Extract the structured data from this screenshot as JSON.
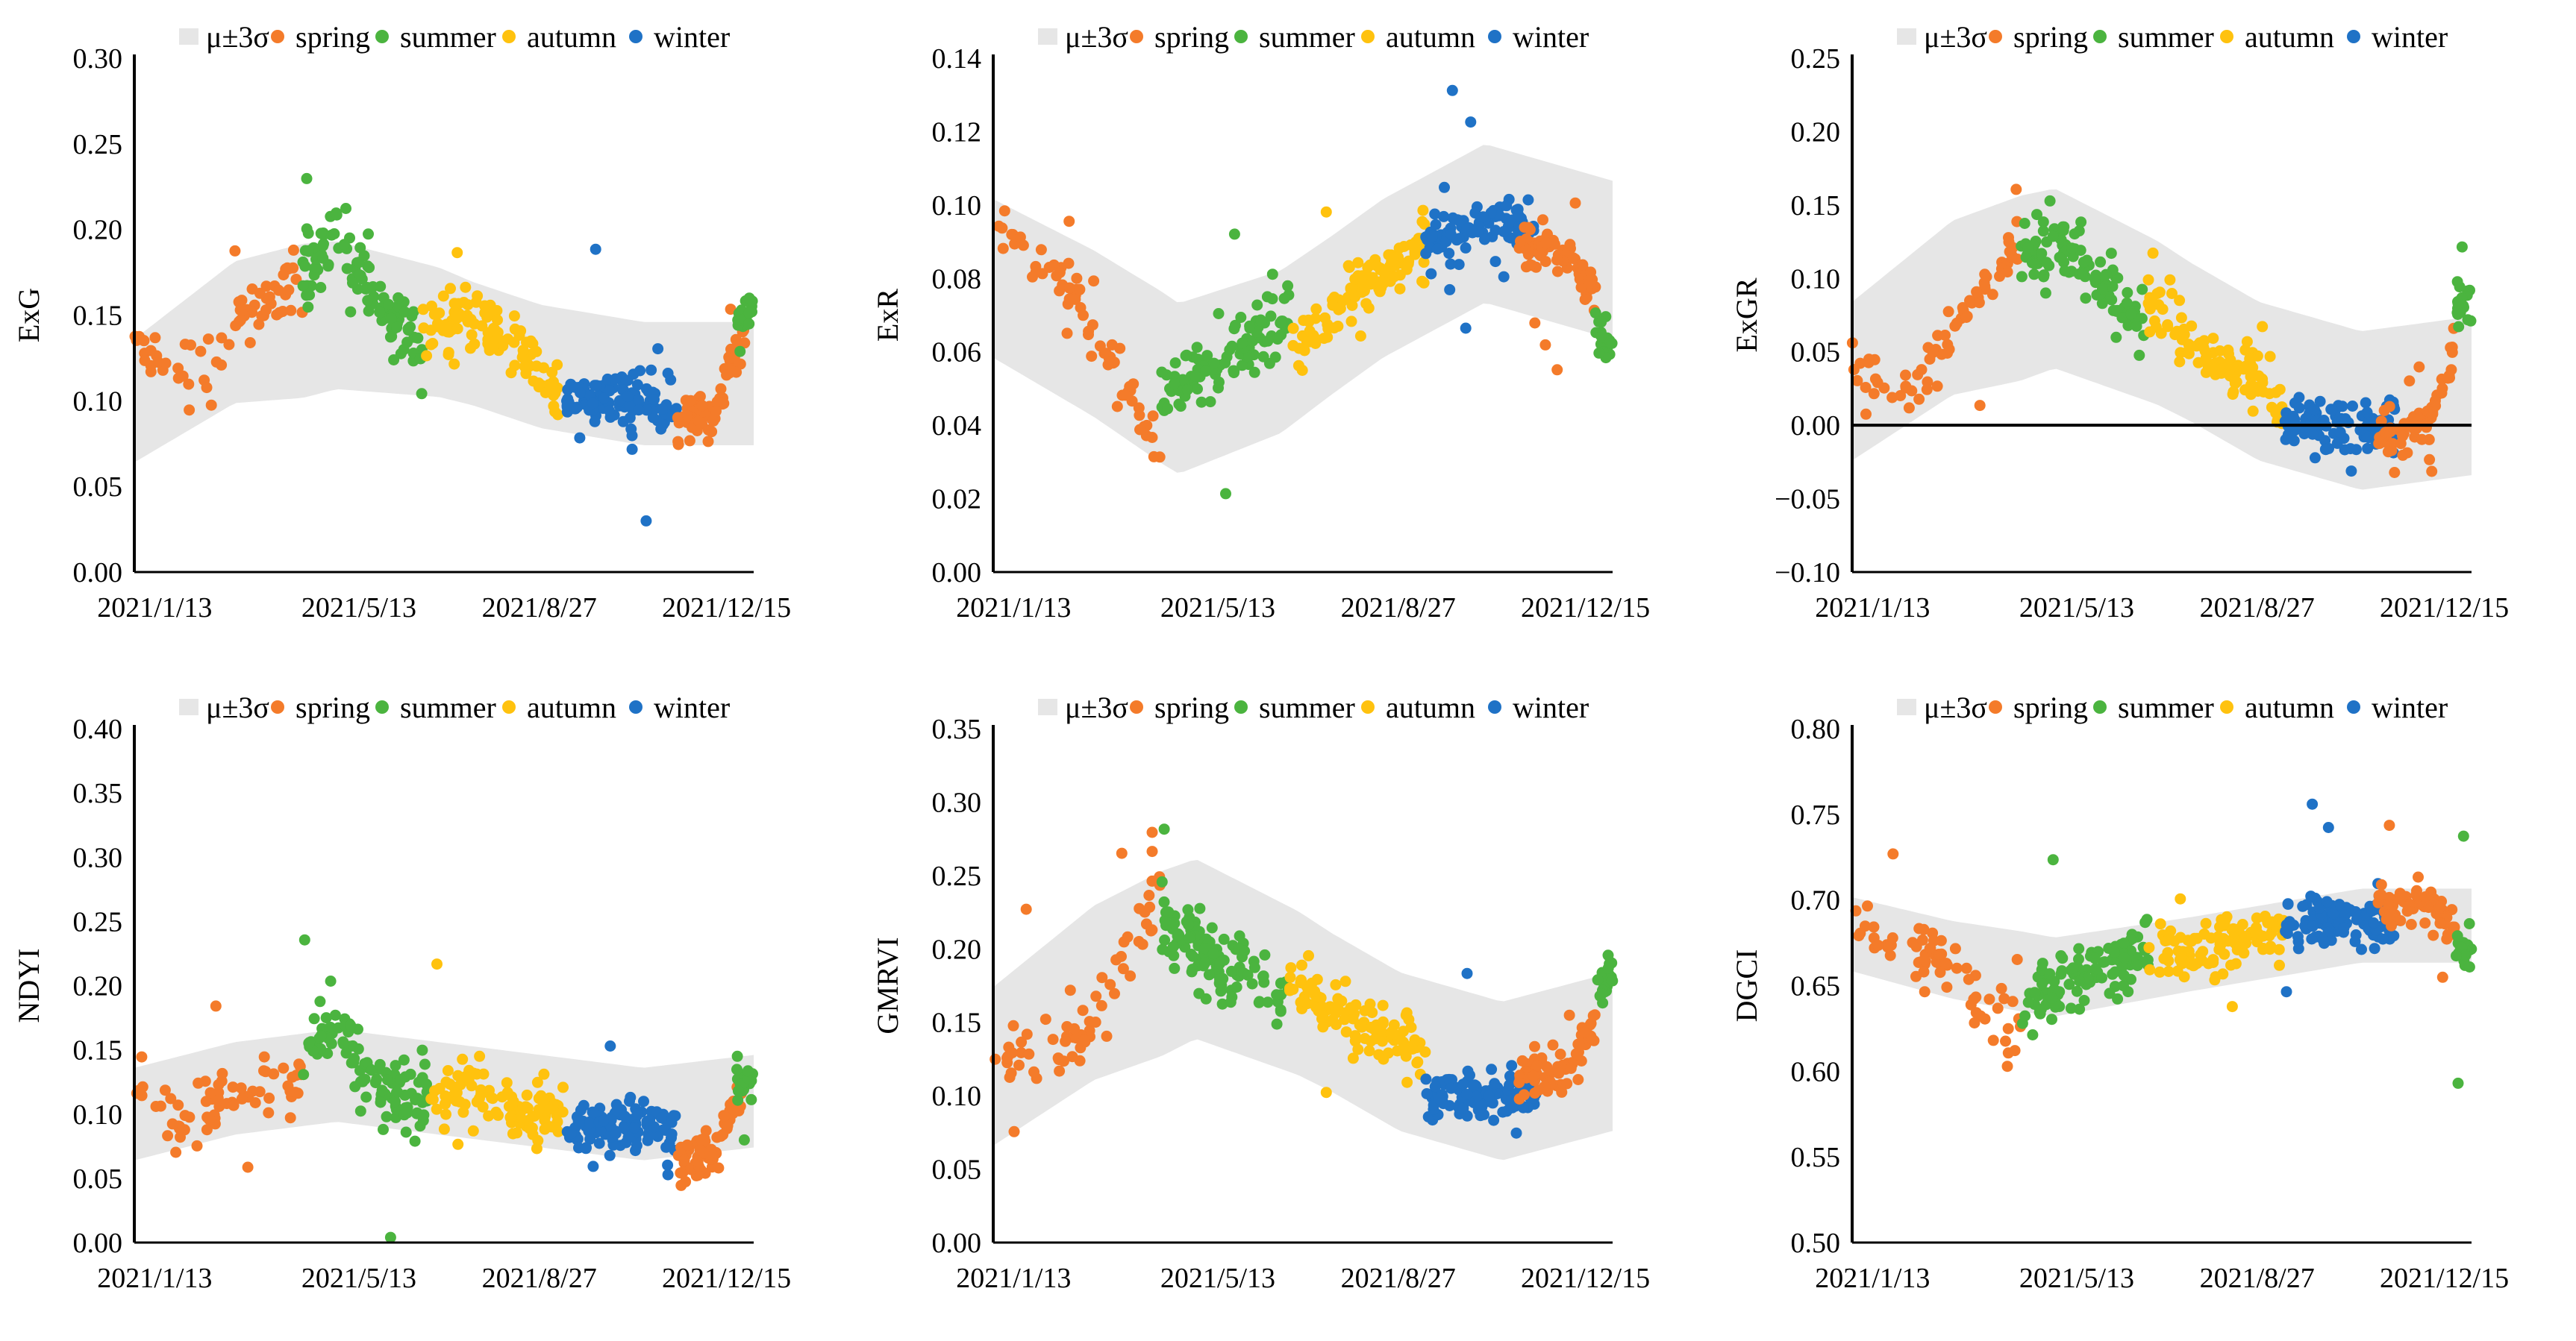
{
  "colors": {
    "spring": "#F47B2A",
    "summer": "#4BB43F",
    "autumn": "#FFC20E",
    "winter": "#1F72C6",
    "band": "#E6E6E6",
    "axis": "#000000"
  },
  "legend": {
    "band": "μ±3σ",
    "spring": "spring",
    "summer": "summer",
    "autumn": "autumn",
    "winter": "winter"
  },
  "chart_data": [
    {
      "type": "scatter",
      "id": "exg",
      "ylabel": "ExG",
      "ylim": [
        0.0,
        0.3
      ],
      "yticks": [
        0.0,
        0.05,
        0.1,
        0.15,
        0.2,
        0.25,
        0.3
      ],
      "ytick_labels": [
        "0.00",
        "0.05",
        "0.10",
        "0.15",
        "0.20",
        "0.25",
        "0.30"
      ],
      "xlim": [
        "2021-01-01",
        "2022-01-01"
      ],
      "xtick_labels": [
        "2021/1/13",
        "2021/5/13",
        "2021/8/27",
        "2021/12/15"
      ],
      "xtick_doy": [
        13,
        133,
        239,
        349
      ],
      "zero_line": false,
      "series_trend": {
        "spring_a": [
          [
            1,
            0.13
          ],
          [
            40,
            0.11
          ],
          [
            60,
            0.15
          ],
          [
            80,
            0.16
          ],
          [
            100,
            0.165
          ]
        ],
        "summer": [
          [
            100,
            0.17
          ],
          [
            120,
            0.2
          ],
          [
            140,
            0.16
          ],
          [
            170,
            0.13
          ]
        ],
        "autumn": [
          [
            170,
            0.14
          ],
          [
            200,
            0.15
          ],
          [
            230,
            0.13
          ],
          [
            250,
            0.1
          ]
        ],
        "winter": [
          [
            255,
            0.1
          ],
          [
            280,
            0.1
          ],
          [
            300,
            0.1
          ],
          [
            320,
            0.09
          ]
        ],
        "spring_b": [
          [
            320,
            0.09
          ],
          [
            340,
            0.09
          ],
          [
            355,
            0.13
          ],
          [
            360,
            0.14
          ]
        ],
        "summer_b": [
          [
            355,
            0.15
          ],
          [
            365,
            0.15
          ]
        ]
      },
      "band_mu": [
        [
          1,
          0.1
        ],
        [
          60,
          0.14
        ],
        [
          120,
          0.15
        ],
        [
          180,
          0.14
        ],
        [
          240,
          0.12
        ],
        [
          300,
          0.11
        ],
        [
          365,
          0.11
        ]
      ],
      "band_sigma": [
        [
          1,
          0.02
        ],
        [
          100,
          0.025
        ],
        [
          200,
          0.02
        ],
        [
          365,
          0.02
        ]
      ]
    },
    {
      "type": "scatter",
      "id": "exr",
      "ylabel": "ExR",
      "ylim": [
        0.0,
        0.14
      ],
      "yticks": [
        0.0,
        0.02,
        0.04,
        0.06,
        0.08,
        0.1,
        0.12,
        0.14
      ],
      "ytick_labels": [
        "0.00",
        "0.02",
        "0.04",
        "0.06",
        "0.08",
        "0.10",
        "0.12",
        "0.14"
      ],
      "xlim": [
        "2021-01-01",
        "2022-01-01"
      ],
      "xtick_labels": [
        "2021/1/13",
        "2021/5/13",
        "2021/8/27",
        "2021/12/15"
      ],
      "xtick_doy": [
        13,
        133,
        239,
        349
      ],
      "zero_line": false,
      "series_trend": {
        "spring_a": [
          [
            1,
            0.09
          ],
          [
            30,
            0.085
          ],
          [
            60,
            0.07
          ],
          [
            80,
            0.05
          ],
          [
            100,
            0.03
          ]
        ],
        "summer": [
          [
            100,
            0.05
          ],
          [
            130,
            0.055
          ],
          [
            160,
            0.065
          ],
          [
            175,
            0.07
          ]
        ],
        "autumn": [
          [
            175,
            0.06
          ],
          [
            210,
            0.075
          ],
          [
            240,
            0.085
          ],
          [
            255,
            0.09
          ]
        ],
        "winter": [
          [
            255,
            0.09
          ],
          [
            290,
            0.095
          ],
          [
            320,
            0.095
          ]
        ],
        "spring_b": [
          [
            310,
            0.09
          ],
          [
            340,
            0.085
          ],
          [
            355,
            0.075
          ]
        ],
        "summer_b": [
          [
            355,
            0.065
          ],
          [
            365,
            0.06
          ]
        ]
      },
      "band_mu": [
        [
          1,
          0.08
        ],
        [
          60,
          0.065
        ],
        [
          110,
          0.05
        ],
        [
          170,
          0.06
        ],
        [
          230,
          0.08
        ],
        [
          290,
          0.095
        ],
        [
          365,
          0.085
        ]
      ],
      "band_sigma": [
        [
          1,
          0.012
        ],
        [
          100,
          0.013
        ],
        [
          200,
          0.012
        ],
        [
          365,
          0.012
        ]
      ]
    },
    {
      "type": "scatter",
      "id": "exgr",
      "ylabel": "ExGR",
      "ylim": [
        -0.1,
        0.25
      ],
      "yticks": [
        -0.1,
        -0.05,
        0.0,
        0.05,
        0.1,
        0.15,
        0.2,
        0.25
      ],
      "ytick_labels": [
        "−0.10",
        "−0.05",
        "0.00",
        "0.05",
        "0.10",
        "0.15",
        "0.20",
        "0.25"
      ],
      "xlim": [
        "2021-01-01",
        "2022-01-01"
      ],
      "xtick_labels": [
        "2021/1/13",
        "2021/5/13",
        "2021/8/27",
        "2021/12/15"
      ],
      "xtick_doy": [
        13,
        133,
        239,
        349
      ],
      "zero_line": true,
      "series_trend": {
        "spring_a": [
          [
            1,
            0.04
          ],
          [
            30,
            0.02
          ],
          [
            60,
            0.06
          ],
          [
            80,
            0.1
          ],
          [
            100,
            0.13
          ]
        ],
        "summer": [
          [
            100,
            0.12
          ],
          [
            130,
            0.12
          ],
          [
            160,
            0.08
          ],
          [
            175,
            0.06
          ]
        ],
        "autumn": [
          [
            175,
            0.08
          ],
          [
            210,
            0.05
          ],
          [
            240,
            0.03
          ],
          [
            255,
            0.01
          ]
        ],
        "winter": [
          [
            255,
            0.0
          ],
          [
            290,
            0.0
          ],
          [
            320,
            0.0
          ]
        ],
        "spring_b": [
          [
            310,
            -0.01
          ],
          [
            340,
            0.0
          ],
          [
            355,
            0.05
          ]
        ],
        "summer_b": [
          [
            355,
            0.08
          ],
          [
            365,
            0.08
          ]
        ]
      },
      "band_mu": [
        [
          1,
          0.03
        ],
        [
          60,
          0.08
        ],
        [
          120,
          0.1
        ],
        [
          180,
          0.07
        ],
        [
          240,
          0.03
        ],
        [
          300,
          0.01
        ],
        [
          365,
          0.02
        ]
      ],
      "band_sigma": [
        [
          1,
          0.03
        ],
        [
          100,
          0.035
        ],
        [
          200,
          0.03
        ],
        [
          365,
          0.03
        ]
      ]
    },
    {
      "type": "scatter",
      "id": "ndyi",
      "ylabel": "NDYI",
      "ylim": [
        0.0,
        0.4
      ],
      "yticks": [
        0.0,
        0.05,
        0.1,
        0.15,
        0.2,
        0.25,
        0.3,
        0.35,
        0.4
      ],
      "ytick_labels": [
        "0.00",
        "0.05",
        "0.10",
        "0.15",
        "0.20",
        "0.25",
        "0.30",
        "0.35",
        "0.40"
      ],
      "xlim": [
        "2021-01-01",
        "2022-01-01"
      ],
      "xtick_labels": [
        "2021/1/13",
        "2021/5/13",
        "2021/8/27",
        "2021/12/15"
      ],
      "xtick_doy": [
        13,
        133,
        239,
        349
      ],
      "zero_line": false,
      "series_trend": {
        "spring_a": [
          [
            1,
            0.12
          ],
          [
            30,
            0.09
          ],
          [
            60,
            0.12
          ],
          [
            80,
            0.12
          ],
          [
            100,
            0.12
          ]
        ],
        "summer": [
          [
            100,
            0.14
          ],
          [
            120,
            0.18
          ],
          [
            140,
            0.12
          ],
          [
            175,
            0.11
          ]
        ],
        "autumn": [
          [
            175,
            0.11
          ],
          [
            200,
            0.12
          ],
          [
            230,
            0.1
          ],
          [
            255,
            0.1
          ]
        ],
        "winter": [
          [
            255,
            0.09
          ],
          [
            290,
            0.09
          ],
          [
            320,
            0.09
          ]
        ],
        "spring_b": [
          [
            320,
            0.06
          ],
          [
            340,
            0.07
          ],
          [
            355,
            0.11
          ],
          [
            360,
            0.12
          ]
        ],
        "summer_b": [
          [
            355,
            0.13
          ],
          [
            365,
            0.12
          ]
        ]
      },
      "band_mu": [
        [
          1,
          0.1
        ],
        [
          60,
          0.12
        ],
        [
          120,
          0.13
        ],
        [
          180,
          0.12
        ],
        [
          240,
          0.11
        ],
        [
          300,
          0.1
        ],
        [
          365,
          0.11
        ]
      ],
      "band_sigma": [
        [
          1,
          0.02
        ],
        [
          100,
          0.02
        ],
        [
          200,
          0.02
        ],
        [
          365,
          0.02
        ]
      ]
    },
    {
      "type": "scatter",
      "id": "gmrvi",
      "ylabel": "GMRVI",
      "ylim": [
        0.0,
        0.35
      ],
      "yticks": [
        0.0,
        0.05,
        0.1,
        0.15,
        0.2,
        0.25,
        0.3,
        0.35
      ],
      "ytick_labels": [
        "0.00",
        "0.05",
        "0.10",
        "0.15",
        "0.20",
        "0.25",
        "0.30",
        "0.35"
      ],
      "xlim": [
        "2021-01-01",
        "2022-01-01"
      ],
      "xtick_labels": [
        "2021/1/13",
        "2021/5/13",
        "2021/8/27",
        "2021/12/15"
      ],
      "xtick_doy": [
        13,
        133,
        239,
        349
      ],
      "zero_line": false,
      "series_trend": {
        "spring_a": [
          [
            1,
            0.13
          ],
          [
            30,
            0.12
          ],
          [
            60,
            0.15
          ],
          [
            80,
            0.2
          ],
          [
            100,
            0.25
          ]
        ],
        "summer": [
          [
            100,
            0.22
          ],
          [
            130,
            0.19
          ],
          [
            160,
            0.18
          ],
          [
            175,
            0.17
          ]
        ],
        "autumn": [
          [
            175,
            0.18
          ],
          [
            210,
            0.15
          ],
          [
            240,
            0.14
          ],
          [
            255,
            0.12
          ]
        ],
        "winter": [
          [
            255,
            0.1
          ],
          [
            290,
            0.1
          ],
          [
            320,
            0.1
          ]
        ],
        "spring_b": [
          [
            310,
            0.11
          ],
          [
            340,
            0.12
          ],
          [
            355,
            0.15
          ]
        ],
        "summer_b": [
          [
            355,
            0.17
          ],
          [
            365,
            0.18
          ]
        ]
      },
      "band_mu": [
        [
          1,
          0.12
        ],
        [
          60,
          0.17
        ],
        [
          120,
          0.2
        ],
        [
          180,
          0.17
        ],
        [
          240,
          0.13
        ],
        [
          300,
          0.11
        ],
        [
          365,
          0.13
        ]
      ],
      "band_sigma": [
        [
          1,
          0.03
        ],
        [
          100,
          0.035
        ],
        [
          200,
          0.03
        ],
        [
          365,
          0.03
        ]
      ]
    },
    {
      "type": "scatter",
      "id": "dgci",
      "ylabel": "DGCI",
      "ylim": [
        0.5,
        0.8
      ],
      "yticks": [
        0.5,
        0.55,
        0.6,
        0.65,
        0.7,
        0.75,
        0.8
      ],
      "ytick_labels": [
        "0.50",
        "0.55",
        "0.60",
        "0.65",
        "0.70",
        "0.75",
        "0.80"
      ],
      "xlim": [
        "2021-01-01",
        "2022-01-01"
      ],
      "xtick_labels": [
        "2021/1/13",
        "2021/5/13",
        "2021/8/27",
        "2021/12/15"
      ],
      "xtick_doy": [
        13,
        133,
        239,
        349
      ],
      "zero_line": false,
      "series_trend": {
        "spring_a": [
          [
            1,
            0.68
          ],
          [
            30,
            0.68
          ],
          [
            60,
            0.66
          ],
          [
            80,
            0.64
          ],
          [
            100,
            0.63
          ]
        ],
        "summer": [
          [
            100,
            0.64
          ],
          [
            130,
            0.65
          ],
          [
            160,
            0.67
          ],
          [
            175,
            0.67
          ]
        ],
        "autumn": [
          [
            175,
            0.67
          ],
          [
            210,
            0.67
          ],
          [
            240,
            0.68
          ],
          [
            255,
            0.68
          ]
        ],
        "winter": [
          [
            255,
            0.685
          ],
          [
            290,
            0.69
          ],
          [
            320,
            0.69
          ]
        ],
        "spring_b": [
          [
            310,
            0.7
          ],
          [
            340,
            0.7
          ],
          [
            355,
            0.68
          ]
        ],
        "summer_b": [
          [
            355,
            0.67
          ],
          [
            365,
            0.67
          ]
        ]
      },
      "band_mu": [
        [
          1,
          0.68
        ],
        [
          60,
          0.665
        ],
        [
          120,
          0.655
        ],
        [
          180,
          0.665
        ],
        [
          240,
          0.675
        ],
        [
          300,
          0.685
        ],
        [
          365,
          0.685
        ]
      ],
      "band_sigma": [
        [
          1,
          0.012
        ],
        [
          100,
          0.013
        ],
        [
          200,
          0.012
        ],
        [
          365,
          0.012
        ]
      ]
    }
  ]
}
